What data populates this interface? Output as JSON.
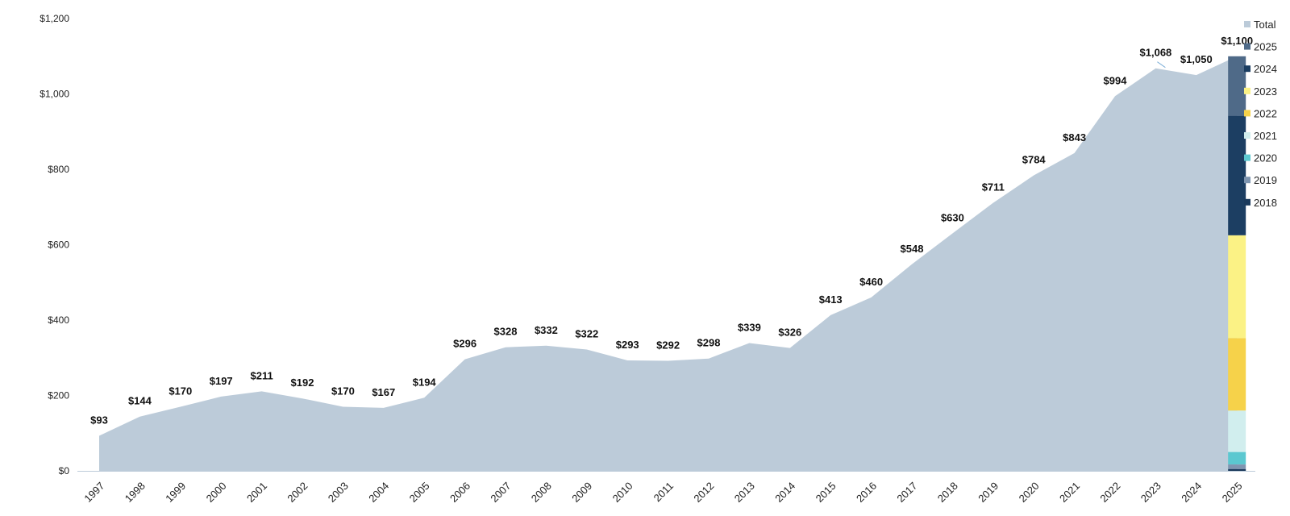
{
  "chart_data": {
    "type": "area",
    "title": "",
    "xlabel": "",
    "ylabel": "",
    "ylim": [
      0,
      1200
    ],
    "yticks": [
      "$0",
      "$200",
      "$400",
      "$600",
      "$800",
      "$1,000",
      "$1,200"
    ],
    "ytick_values": [
      0,
      200,
      400,
      600,
      800,
      1000,
      1200
    ],
    "grid": false,
    "legend_position": "right",
    "categories": [
      "1997",
      "1998",
      "1999",
      "2000",
      "2001",
      "2002",
      "2003",
      "2004",
      "2005",
      "2006",
      "2007",
      "2008",
      "2009",
      "2010",
      "2011",
      "2012",
      "2013",
      "2014",
      "2015",
      "2016",
      "2017",
      "2018",
      "2019",
      "2020",
      "2021",
      "2022",
      "2023",
      "2024",
      "2025"
    ],
    "series": [
      {
        "name": "Total",
        "color": "#bccbd9",
        "values": [
          93,
          144,
          170,
          197,
          211,
          192,
          170,
          167,
          194,
          296,
          328,
          332,
          322,
          293,
          292,
          298,
          339,
          326,
          413,
          460,
          548,
          630,
          711,
          784,
          843,
          994,
          1068,
          1050,
          1100
        ],
        "labels": [
          "$93",
          "$144",
          "$170",
          "$197",
          "$211",
          "$192",
          "$170",
          "$167",
          "$194",
          "$296",
          "$328",
          "$332",
          "$322",
          "$293",
          "$292",
          "$298",
          "$339",
          "$326",
          "$413",
          "$460",
          "$548",
          "$630",
          "$711",
          "$784",
          "$843",
          "$994",
          "$1,068",
          "$1,050",
          "$1,100"
        ]
      }
    ],
    "stacked_bar": {
      "category": "2025",
      "segments": [
        {
          "name": "2018",
          "value": 5,
          "color": "#1b3a5c"
        },
        {
          "name": "2019",
          "value": 12,
          "color": "#7e95b0"
        },
        {
          "name": "2020",
          "value": 33,
          "color": "#5bc8d0"
        },
        {
          "name": "2021",
          "value": 110,
          "color": "#d1eeee"
        },
        {
          "name": "2022",
          "value": 192,
          "color": "#f6d24a"
        },
        {
          "name": "2023",
          "value": 273,
          "color": "#fbf285"
        },
        {
          "name": "2024",
          "value": 317,
          "color": "#1c3e62"
        },
        {
          "name": "2025",
          "value": 158,
          "color": "#4f6a88"
        }
      ]
    },
    "legend": [
      {
        "name": "Total",
        "color": "#bccbd9"
      },
      {
        "name": "2025",
        "color": "#4f6a88"
      },
      {
        "name": "2024",
        "color": "#1c3e62"
      },
      {
        "name": "2023",
        "color": "#fbf285"
      },
      {
        "name": "2022",
        "color": "#f6d24a"
      },
      {
        "name": "2021",
        "color": "#d1eeee"
      },
      {
        "name": "2020",
        "color": "#5bc8d0"
      },
      {
        "name": "2019",
        "color": "#7e95b0"
      },
      {
        "name": "2018",
        "color": "#1b3a5c"
      }
    ]
  }
}
